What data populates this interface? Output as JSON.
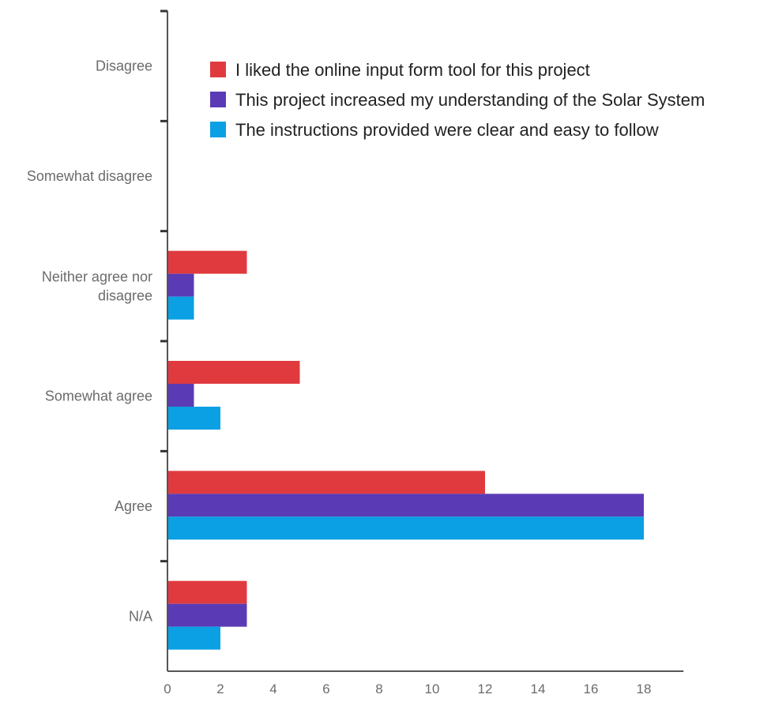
{
  "chart_data": {
    "type": "bar",
    "orientation": "horizontal",
    "categories": [
      "Disagree",
      "Somewhat disagree",
      "Neither agree nor disagree",
      "Somewhat agree",
      "Agree",
      "N/A"
    ],
    "category_display": [
      [
        "Disagree"
      ],
      [
        "Somewhat disagree"
      ],
      [
        "Neither agree nor",
        "disagree"
      ],
      [
        "Somewhat agree"
      ],
      [
        "Agree"
      ],
      [
        "N/A"
      ]
    ],
    "series": [
      {
        "name": "I liked the online input form tool for this project",
        "color": "#e03a3e",
        "values": [
          0,
          0,
          3,
          5,
          12,
          3
        ]
      },
      {
        "name": "This project increased my understanding of the Solar System",
        "color": "#5b3bb5",
        "values": [
          0,
          0,
          1,
          1,
          18,
          3
        ]
      },
      {
        "name": "The instructions provided were clear and easy to follow",
        "color": "#0aa0e3",
        "values": [
          0,
          0,
          1,
          2,
          18,
          2
        ]
      }
    ],
    "xlim": [
      0,
      19.5
    ],
    "xticks": [
      0,
      2,
      4,
      6,
      8,
      10,
      12,
      14,
      16,
      18
    ],
    "legend_position": "top-right",
    "grid": false,
    "title": "",
    "xlabel": "",
    "ylabel": ""
  }
}
